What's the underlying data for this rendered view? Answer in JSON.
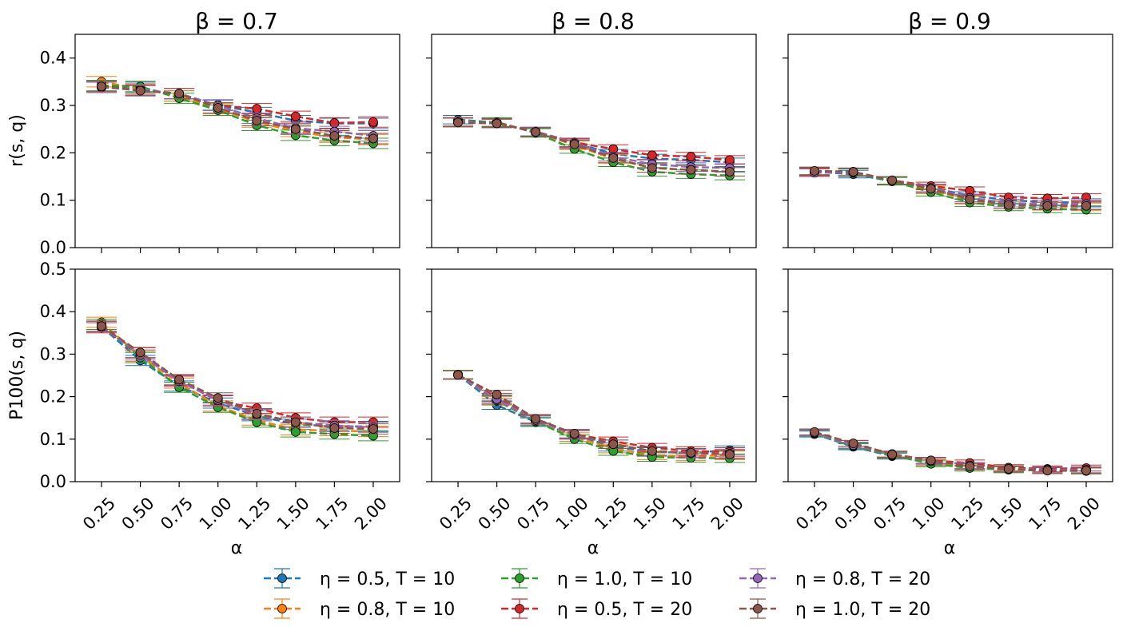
{
  "chart_data": {
    "type": "line",
    "x": [
      0.25,
      0.5,
      0.75,
      1.0,
      1.25,
      1.5,
      1.75,
      2.0
    ],
    "x_tick_labels": [
      "0.25",
      "0.50",
      "0.75",
      "1.00",
      "1.25",
      "1.50",
      "1.75",
      "2.00"
    ],
    "xlabel": "α",
    "series_styles": [
      {
        "id": "s1",
        "name": "η = 0.5, T = 10",
        "color": "#1f77b4"
      },
      {
        "id": "s2",
        "name": "η = 0.8, T = 10",
        "color": "#ff7f0e"
      },
      {
        "id": "s3",
        "name": "η = 1.0, T = 10",
        "color": "#2ca02c"
      },
      {
        "id": "s4",
        "name": "η = 0.5, T = 20",
        "color": "#d62728"
      },
      {
        "id": "s5",
        "name": "η = 0.8, T = 20",
        "color": "#9467bd"
      },
      {
        "id": "s6",
        "name": "η = 1.0, T = 20",
        "color": "#8c564b"
      }
    ],
    "legend_placement": "bottom-center",
    "rows": [
      {
        "ylabel": "r(s, q)",
        "ylim": [
          0,
          0.45
        ],
        "y_ticks": [
          0.0,
          0.1,
          0.2,
          0.3,
          0.4
        ],
        "y_tick_labels": [
          "0.0",
          "0.1",
          "0.2",
          "0.3",
          "0.4"
        ]
      },
      {
        "ylabel": "P100(s, q)",
        "ylim": [
          0,
          0.5
        ],
        "y_ticks": [
          0.0,
          0.1,
          0.2,
          0.3,
          0.4,
          0.5
        ],
        "y_tick_labels": [
          "0.0",
          "0.1",
          "0.2",
          "0.3",
          "0.4",
          "0.5"
        ]
      }
    ],
    "columns": [
      {
        "title": "β = 0.7"
      },
      {
        "title": "β = 0.8"
      },
      {
        "title": "β = 0.9"
      }
    ],
    "panels": [
      {
        "row": 0,
        "col": 0,
        "title": "β = 0.7",
        "series": [
          {
            "name": "η = 0.5, T = 10",
            "values": [
              0.338,
              0.338,
              0.32,
              0.301,
              0.285,
              0.268,
              0.262,
              0.262
            ],
            "err": 0.011
          },
          {
            "name": "η = 0.8, T = 10",
            "values": [
              0.35,
              0.335,
              0.32,
              0.293,
              0.265,
              0.245,
              0.233,
              0.228
            ],
            "err": 0.011
          },
          {
            "name": "η = 1.0, T = 10",
            "values": [
              0.342,
              0.34,
              0.315,
              0.29,
              0.258,
              0.237,
              0.226,
              0.22
            ],
            "err": 0.011
          },
          {
            "name": "η = 0.5, T = 20",
            "values": [
              0.34,
              0.332,
              0.325,
              0.3,
              0.293,
              0.277,
              0.263,
              0.265
            ],
            "err": 0.011
          },
          {
            "name": "η = 0.8, T = 20",
            "values": [
              0.338,
              0.333,
              0.325,
              0.3,
              0.273,
              0.252,
              0.245,
              0.236
            ],
            "err": 0.011
          },
          {
            "name": "η = 1.0, T = 20",
            "values": [
              0.34,
              0.331,
              0.325,
              0.295,
              0.268,
              0.25,
              0.236,
              0.23
            ],
            "err": 0.011
          }
        ]
      },
      {
        "row": 0,
        "col": 1,
        "title": "β = 0.8",
        "series": [
          {
            "name": "η = 0.5, T = 10",
            "values": [
              0.27,
              0.264,
              0.243,
              0.221,
              0.198,
              0.188,
              0.185,
              0.18
            ],
            "err": 0.009
          },
          {
            "name": "η = 0.8, T = 10",
            "values": [
              0.266,
              0.263,
              0.244,
              0.216,
              0.187,
              0.168,
              0.164,
              0.16
            ],
            "err": 0.009
          },
          {
            "name": "η = 1.0, T = 10",
            "values": [
              0.264,
              0.265,
              0.242,
              0.208,
              0.18,
              0.16,
              0.155,
              0.152
            ],
            "err": 0.009
          },
          {
            "name": "η = 0.5, T = 20",
            "values": [
              0.264,
              0.263,
              0.245,
              0.222,
              0.208,
              0.195,
              0.192,
              0.185
            ],
            "err": 0.009
          },
          {
            "name": "η = 0.8, T = 20",
            "values": [
              0.265,
              0.262,
              0.245,
              0.22,
              0.192,
              0.176,
              0.17,
              0.168
            ],
            "err": 0.009
          },
          {
            "name": "η = 1.0, T = 20",
            "values": [
              0.264,
              0.262,
              0.244,
              0.218,
              0.189,
              0.168,
              0.164,
              0.16
            ],
            "err": 0.009
          }
        ]
      },
      {
        "row": 0,
        "col": 2,
        "title": "β = 0.9",
        "series": [
          {
            "name": "η = 0.5, T = 10",
            "values": [
              0.16,
              0.155,
              0.14,
              0.126,
              0.11,
              0.1,
              0.096,
              0.095
            ],
            "err": 0.008
          },
          {
            "name": "η = 0.8, T = 10",
            "values": [
              0.16,
              0.158,
              0.141,
              0.122,
              0.1,
              0.09,
              0.087,
              0.086
            ],
            "err": 0.008
          },
          {
            "name": "η = 1.0, T = 10",
            "values": [
              0.161,
              0.158,
              0.14,
              0.117,
              0.095,
              0.086,
              0.082,
              0.08
            ],
            "err": 0.008
          },
          {
            "name": "η = 0.5, T = 20",
            "values": [
              0.16,
              0.16,
              0.142,
              0.13,
              0.12,
              0.106,
              0.104,
              0.106
            ],
            "err": 0.008
          },
          {
            "name": "η = 0.8, T = 20",
            "values": [
              0.158,
              0.159,
              0.142,
              0.126,
              0.105,
              0.094,
              0.092,
              0.092
            ],
            "err": 0.008
          },
          {
            "name": "η = 1.0, T = 20",
            "values": [
              0.162,
              0.16,
              0.142,
              0.124,
              0.102,
              0.09,
              0.088,
              0.088
            ],
            "err": 0.008
          }
        ]
      },
      {
        "row": 1,
        "col": 0,
        "title": "β = 0.7",
        "series": [
          {
            "name": "η = 0.5, T = 10",
            "values": [
              0.365,
              0.285,
              0.225,
              0.185,
              0.155,
              0.135,
              0.13,
              0.13
            ],
            "err": 0.012
          },
          {
            "name": "η = 0.8, T = 10",
            "values": [
              0.375,
              0.295,
              0.232,
              0.178,
              0.145,
              0.122,
              0.12,
              0.118
            ],
            "err": 0.012
          },
          {
            "name": "η = 1.0, T = 10",
            "values": [
              0.37,
              0.292,
              0.222,
              0.175,
              0.14,
              0.117,
              0.112,
              0.108
            ],
            "err": 0.012
          },
          {
            "name": "η = 0.5, T = 20",
            "values": [
              0.362,
              0.303,
              0.238,
              0.19,
              0.173,
              0.15,
              0.14,
              0.14
            ],
            "err": 0.012
          },
          {
            "name": "η = 0.8, T = 20",
            "values": [
              0.365,
              0.298,
              0.236,
              0.192,
              0.158,
              0.14,
              0.132,
              0.128
            ],
            "err": 0.012
          },
          {
            "name": "η = 1.0, T = 20",
            "values": [
              0.366,
              0.304,
              0.24,
              0.197,
              0.16,
              0.14,
              0.126,
              0.124
            ],
            "err": 0.012
          }
        ]
      },
      {
        "row": 1,
        "col": 1,
        "title": "β = 0.8",
        "series": [
          {
            "name": "η = 0.5, T = 10",
            "values": [
              0.252,
              0.18,
              0.14,
              0.11,
              0.082,
              0.07,
              0.068,
              0.074
            ],
            "err": 0.01
          },
          {
            "name": "η = 0.8, T = 10",
            "values": [
              0.252,
              0.19,
              0.142,
              0.105,
              0.078,
              0.062,
              0.06,
              0.062
            ],
            "err": 0.01
          },
          {
            "name": "η = 1.0, T = 10",
            "values": [
              0.252,
              0.192,
              0.142,
              0.1,
              0.072,
              0.058,
              0.056,
              0.055
            ],
            "err": 0.01
          },
          {
            "name": "η = 0.5, T = 20",
            "values": [
              0.251,
              0.198,
              0.146,
              0.112,
              0.095,
              0.08,
              0.072,
              0.07
            ],
            "err": 0.01
          },
          {
            "name": "η = 0.8, T = 20",
            "values": [
              0.251,
              0.194,
              0.145,
              0.11,
              0.088,
              0.072,
              0.066,
              0.066
            ],
            "err": 0.01
          },
          {
            "name": "η = 1.0, T = 20",
            "values": [
              0.251,
              0.205,
              0.148,
              0.113,
              0.088,
              0.072,
              0.068,
              0.064
            ],
            "err": 0.01
          }
        ]
      },
      {
        "row": 1,
        "col": 2,
        "title": "β = 0.9",
        "series": [
          {
            "name": "η = 0.5, T = 10",
            "values": [
              0.112,
              0.082,
              0.06,
              0.045,
              0.035,
              0.03,
              0.028,
              0.028
            ],
            "err": 0.007
          },
          {
            "name": "η = 0.8, T = 10",
            "values": [
              0.114,
              0.084,
              0.062,
              0.045,
              0.035,
              0.03,
              0.028,
              0.027
            ],
            "err": 0.007
          },
          {
            "name": "η = 1.0, T = 10",
            "values": [
              0.114,
              0.084,
              0.062,
              0.042,
              0.032,
              0.028,
              0.026,
              0.025
            ],
            "err": 0.007
          },
          {
            "name": "η = 0.5, T = 20",
            "values": [
              0.115,
              0.09,
              0.065,
              0.05,
              0.044,
              0.033,
              0.03,
              0.032
            ],
            "err": 0.007
          },
          {
            "name": "η = 0.8, T = 20",
            "values": [
              0.115,
              0.086,
              0.064,
              0.048,
              0.038,
              0.03,
              0.028,
              0.028
            ],
            "err": 0.007
          },
          {
            "name": "η = 1.0, T = 20",
            "values": [
              0.117,
              0.09,
              0.064,
              0.05,
              0.036,
              0.03,
              0.026,
              0.026
            ],
            "err": 0.007
          }
        ]
      }
    ]
  }
}
